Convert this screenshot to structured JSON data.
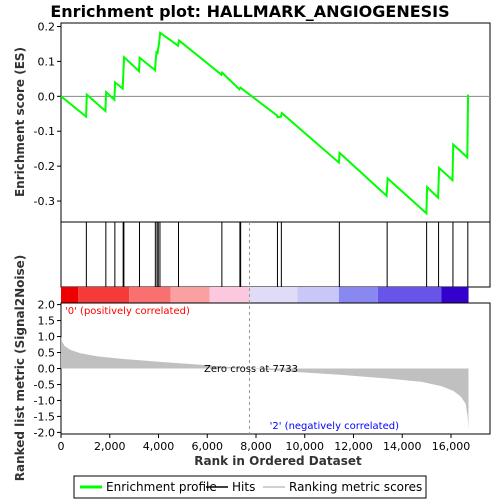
{
  "chart_data": {
    "type": "line",
    "title": "Enrichment plot: HALLMARK_ANGIOGENESIS",
    "top_panel": {
      "ylabel": "Enrichment score (ES)",
      "ylim": [
        -0.36,
        0.21
      ],
      "yticks": [
        "0.2",
        "0.1",
        "0.0",
        "-0.1",
        "-0.2",
        "-0.3"
      ],
      "ytick_values": [
        0.2,
        0.1,
        0.0,
        -0.1,
        -0.2,
        -0.3
      ],
      "series": [
        {
          "name": "Enrichment profile",
          "color": "#00ff00",
          "x": [
            0,
            1030,
            1060,
            1820,
            1850,
            2190,
            2220,
            2530,
            2560,
            2590,
            3200,
            3230,
            3860,
            3880,
            3920,
            3950,
            4030,
            4070,
            4800,
            4840,
            6580,
            6610,
            7320,
            7360,
            8860,
            8890,
            9020,
            9060,
            11400,
            11430,
            13360,
            13400,
            14990,
            15020,
            15470,
            15510,
            16060,
            16090,
            16670,
            16700
          ],
          "y": [
            0.0,
            -0.058,
            0.005,
            -0.042,
            0.012,
            -0.01,
            0.04,
            0.022,
            0.07,
            0.112,
            0.072,
            0.11,
            0.075,
            0.1,
            0.13,
            0.12,
            0.155,
            0.182,
            0.145,
            0.16,
            0.062,
            0.068,
            0.02,
            0.025,
            -0.055,
            -0.06,
            -0.058,
            -0.048,
            -0.19,
            -0.162,
            -0.285,
            -0.235,
            -0.335,
            -0.26,
            -0.29,
            -0.205,
            -0.24,
            -0.138,
            -0.175,
            0.005
          ]
        }
      ]
    },
    "hits": [
      1040,
      1840,
      2210,
      2550,
      2580,
      3220,
      3870,
      3940,
      3990,
      4060,
      4820,
      6600,
      7340,
      7370,
      8880,
      9040,
      11420,
      13380,
      15000,
      15490,
      16080,
      16690
    ],
    "hits_label": "Hits",
    "color_bar": {
      "segments": [
        {
          "start": 0,
          "end": 700,
          "color": "#ee0000"
        },
        {
          "start": 700,
          "end": 2800,
          "color": "#f53a3a"
        },
        {
          "start": 2800,
          "end": 4500,
          "color": "#f87070"
        },
        {
          "start": 4500,
          "end": 6100,
          "color": "#fba0a0"
        },
        {
          "start": 6100,
          "end": 7733,
          "color": "#fcc8e0"
        },
        {
          "start": 7733,
          "end": 9700,
          "color": "#e0dcf8"
        },
        {
          "start": 9700,
          "end": 11400,
          "color": "#c8c8f8"
        },
        {
          "start": 11400,
          "end": 13000,
          "color": "#8888f0"
        },
        {
          "start": 13000,
          "end": 15600,
          "color": "#6655e8"
        },
        {
          "start": 15600,
          "end": 16720,
          "color": "#3300cc"
        }
      ]
    },
    "bottom_panel": {
      "ylabel": "Ranked list metric (Signal2Noise)",
      "ylim": [
        -2.05,
        2.05
      ],
      "yticks": [
        "2.0",
        "1.5",
        "1.0",
        "0.5",
        "0.0",
        "-0.5",
        "-1.0",
        "-1.5",
        "-2.0"
      ],
      "ytick_values": [
        2.0,
        1.5,
        1.0,
        0.5,
        0.0,
        -0.5,
        -1.0,
        -1.5,
        -2.0
      ],
      "series": [
        {
          "name": "Ranking metric scores",
          "color": "#c0c0c0",
          "x": [
            0,
            40,
            150,
            400,
            800,
            1500,
            2500,
            4000,
            6000,
            7733,
            9500,
            11500,
            13500,
            14800,
            15600,
            16100,
            16400,
            16600,
            16680,
            16720
          ],
          "y": [
            1.0,
            0.85,
            0.7,
            0.58,
            0.48,
            0.38,
            0.3,
            0.21,
            0.1,
            0.0,
            -0.1,
            -0.2,
            -0.32,
            -0.42,
            -0.55,
            -0.7,
            -0.88,
            -1.1,
            -1.5,
            -1.88
          ]
        }
      ],
      "zero_cross_label": "Zero cross at 7733",
      "zero_cross": 7733,
      "pos_label": "'0' (positively correlated)",
      "neg_label": "'2' (negatively correlated)"
    },
    "xlabel": "Rank in Ordered Dataset",
    "xlim": [
      0,
      17600
    ],
    "xticks": [
      "0",
      "2,000",
      "4,000",
      "6,000",
      "8,000",
      "10,000",
      "12,000",
      "14,000",
      "16,000"
    ],
    "xtick_values": [
      0,
      2000,
      4000,
      6000,
      8000,
      10000,
      12000,
      14000,
      16000
    ],
    "legend": {
      "placement": "bottom",
      "items": [
        {
          "label": "Enrichment profile",
          "color": "#00ff00"
        },
        {
          "label": "Hits",
          "color": "#000000"
        },
        {
          "label": "Ranking metric scores",
          "color": "#c0c0c0"
        }
      ]
    }
  }
}
